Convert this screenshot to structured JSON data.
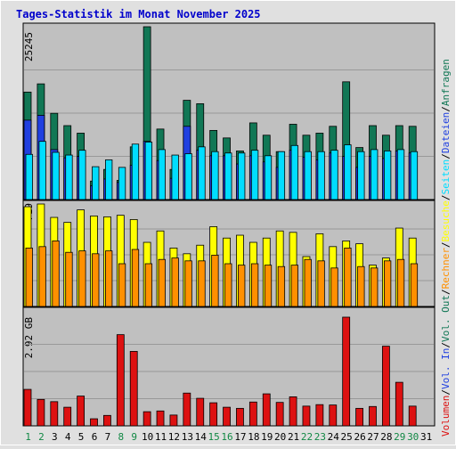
{
  "chart_data": {
    "type": "bar",
    "title": "Tages-Statistik im Monat November 2025",
    "colors": {
      "background": "#e0e0e0",
      "panel": "#c0c0c0",
      "grid": "#999999",
      "anfragen": "#117755",
      "dateien": "#2040e0",
      "seiten": "#00ddff",
      "besuche": "#ffff00",
      "rechner": "#ff9000",
      "volumen": "#dd1111",
      "title": "#0000cc",
      "tick_weekday": "#000000",
      "tick_weekend": "#118844"
    },
    "days": [
      "1",
      "2",
      "3",
      "4",
      "5",
      "6",
      "7",
      "8",
      "9",
      "10",
      "11",
      "12",
      "13",
      "14",
      "15",
      "16",
      "17",
      "18",
      "19",
      "20",
      "21",
      "22",
      "23",
      "24",
      "25",
      "26",
      "27",
      "28",
      "29",
      "30",
      "31"
    ],
    "weekend_days": [
      "1",
      "2",
      "8",
      "9",
      "15",
      "16",
      "22",
      "23",
      "29",
      "30"
    ],
    "top_panel": {
      "axis_label": "25245",
      "ymax": 25245,
      "series": [
        {
          "name": "Anfragen",
          "values": [
            15700,
            16900,
            12600,
            10800,
            9700,
            2700,
            4400,
            2800,
            7700,
            25245,
            10300,
            4400,
            14500,
            14000,
            10100,
            9000,
            7100,
            11200,
            9400,
            7000,
            11000,
            9400,
            9700,
            10700,
            17200,
            7600,
            10800,
            9400,
            10800,
            10700,
            0
          ]
        },
        {
          "name": "Dateien",
          "values": [
            11600,
            12300,
            7300,
            6100,
            6300,
            2000,
            3000,
            2500,
            5000,
            8500,
            5700,
            3100,
            10700,
            7200,
            6400,
            6400,
            5200,
            6400,
            5500,
            4700,
            7200,
            6200,
            5800,
            6800,
            6300,
            4700,
            6300,
            6000,
            7100,
            6800,
            0
          ]
        },
        {
          "name": "Seiten",
          "values": [
            6600,
            8500,
            6900,
            6500,
            7200,
            4800,
            5800,
            4700,
            8100,
            8400,
            7300,
            6500,
            6700,
            7700,
            7000,
            6800,
            6800,
            7200,
            6400,
            7000,
            7900,
            7000,
            7000,
            7200,
            8000,
            7000,
            7300,
            7100,
            7300,
            7000,
            0
          ]
        }
      ]
    },
    "mid_panel": {
      "axis_label": "719",
      "ymax": 719,
      "series": [
        {
          "name": "Besuche",
          "values": [
            700,
            719,
            625,
            590,
            678,
            635,
            629,
            640,
            610,
            450,
            530,
            410,
            370,
            430,
            560,
            480,
            500,
            450,
            480,
            530,
            520,
            350,
            510,
            420,
            460,
            440,
            290,
            340,
            550,
            480,
            0
          ]
        },
        {
          "name": "Rechner",
          "values": [
            410,
            420,
            460,
            380,
            390,
            370,
            390,
            300,
            400,
            300,
            330,
            340,
            320,
            320,
            360,
            300,
            290,
            300,
            290,
            280,
            290,
            330,
            320,
            270,
            410,
            280,
            270,
            320,
            330,
            300,
            0
          ]
        }
      ]
    },
    "bottom_panel": {
      "axis_label": "2.92 GB",
      "ymax": 2.92,
      "series": [
        {
          "name": "Volumen",
          "values": [
            0.98,
            0.71,
            0.65,
            0.5,
            0.8,
            0.19,
            0.28,
            2.45,
            2.0,
            0.38,
            0.4,
            0.29,
            0.88,
            0.74,
            0.62,
            0.5,
            0.47,
            0.64,
            0.86,
            0.63,
            0.78,
            0.53,
            0.57,
            0.56,
            2.92,
            0.47,
            0.52,
            2.14,
            1.17,
            0.53,
            0
          ]
        }
      ]
    },
    "legend": [
      {
        "text": "Volumen",
        "color": "#dd1111"
      },
      {
        "text": "Vol. In",
        "color": "#2040e0"
      },
      {
        "text": "Vol. Out",
        "color": "#117755"
      },
      {
        "text": "Rechner",
        "color": "#ff9000"
      },
      {
        "text": "Besuche",
        "color": "#ffff00"
      },
      {
        "text": "Seiten",
        "color": "#00ddff"
      },
      {
        "text": "Dateien",
        "color": "#2040e0"
      },
      {
        "text": "Anfragen",
        "color": "#117755"
      }
    ],
    "separator": "/"
  }
}
